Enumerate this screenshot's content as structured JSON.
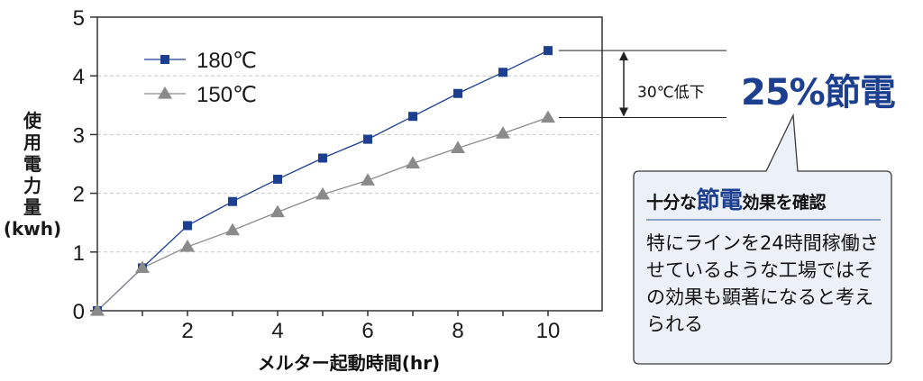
{
  "chart_data": {
    "type": "line",
    "xlabel": "メルター起動時間(hr)",
    "ylabel": "使用電力量(kwh)",
    "ylabel_chars": [
      "使",
      "用",
      "電",
      "力",
      "量",
      "(kwh)"
    ],
    "xlim": [
      0,
      11.2
    ],
    "ylim": [
      0,
      5
    ],
    "x_ticks": [
      2,
      4,
      6,
      8,
      10
    ],
    "x_tick_labels": [
      "2",
      "4",
      "6",
      "8",
      "10"
    ],
    "y_ticks": [
      0,
      1,
      2,
      3,
      4,
      5
    ],
    "y_tick_labels": [
      "0",
      "1",
      "2",
      "3",
      "4",
      "5"
    ],
    "grid": "horizontal dashed",
    "legend_placement": "top-left",
    "x": [
      0,
      1,
      2,
      3,
      4,
      5,
      6,
      7,
      8,
      9,
      10
    ],
    "series": [
      {
        "name": "180℃",
        "marker": "square",
        "color": "#1d3f8f",
        "values": [
          0.0,
          0.73,
          1.45,
          1.86,
          2.24,
          2.6,
          2.92,
          3.31,
          3.7,
          4.06,
          4.43
        ]
      },
      {
        "name": "150℃",
        "marker": "triangle",
        "color": "#8a8a8a",
        "values": [
          0.0,
          0.73,
          1.09,
          1.37,
          1.68,
          1.98,
          2.22,
          2.51,
          2.77,
          3.02,
          3.29
        ]
      }
    ]
  },
  "annotation": {
    "drop_label": "30℃低下",
    "saving_label": "25%節電"
  },
  "callout": {
    "title_pre": "十分な",
    "title_highlight": "節電",
    "title_post": "効果を確認",
    "body": "特にラインを24時間稼働させているような工場ではその効果も顕著になると考えられる"
  },
  "colors": {
    "series_180": "#1d3f8f",
    "series_150": "#8a8a8a",
    "accent": "#1d3f8f",
    "callout_bg": "#ecf0f7",
    "callout_border": "#3a3a3a"
  }
}
